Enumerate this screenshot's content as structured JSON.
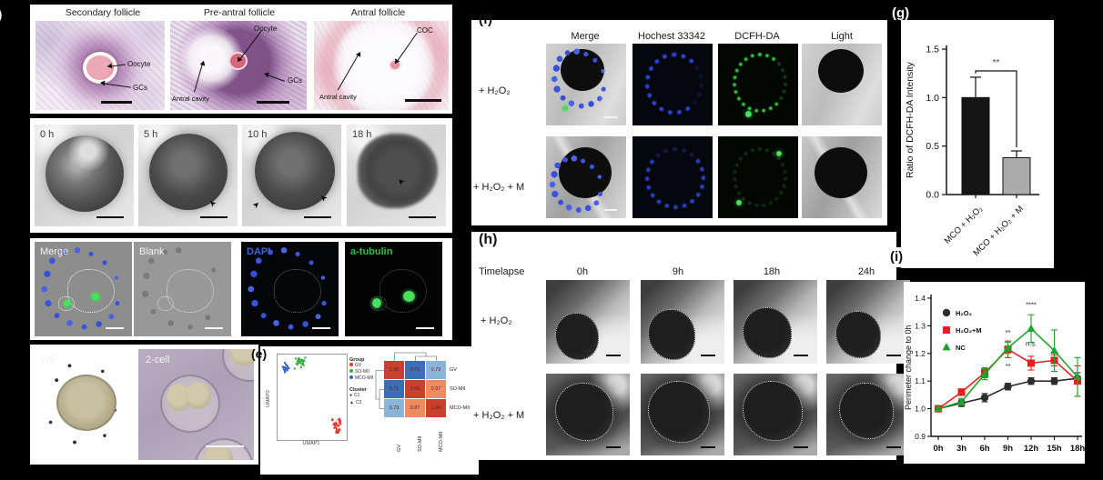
{
  "panel_a": {
    "label": "a)",
    "figures": [
      {
        "title": "Secondary follicle",
        "ann1": "Oocyte",
        "ann2": "GCs"
      },
      {
        "title": "Pre-antral follicle",
        "ann1": "Oocyte",
        "ann2": "Antral cavity",
        "ann3": "GCs"
      },
      {
        "title": "Antral follicle",
        "ann1": "COC",
        "ann2": "Antral cavity"
      }
    ]
  },
  "panel_b": {
    "timepoints": [
      "0 h",
      "5 h",
      "10 h",
      "18 h"
    ]
  },
  "panel_c": {
    "channels": [
      "Merge",
      "Blank",
      "DAPI",
      "a-tubulin"
    ],
    "channel_colors": [
      "#f2f2f2",
      "#f2f2f2",
      "#3e62e0",
      "#2fbf49"
    ]
  },
  "panel_d": {
    "labels": [
      "IVF",
      "2-cell"
    ]
  },
  "panel_e": {
    "label": "(e)",
    "plus_mark": "+"
  },
  "panel_f": {
    "label": "(f)",
    "columns": [
      "Merge",
      "Hochest 33342",
      "DCFH-DA",
      "Light"
    ],
    "rows": [
      "+ H₂O₂",
      "+ H₂O₂ + M"
    ]
  },
  "panel_g": {
    "label": "(g)"
  },
  "panel_h": {
    "label": "(h)",
    "timelapse_label": "Timelapse",
    "columns": [
      "0h",
      "9h",
      "18h",
      "24h"
    ],
    "rows": [
      "+ H₂O₂",
      "+ H₂O₂ + M"
    ]
  },
  "panel_i": {
    "label": "(i)"
  },
  "chart_data": [
    {
      "id": "umap_scatter",
      "type": "scatter",
      "xlabel": "UMAP1",
      "ylabel": "UMAP2",
      "legend": {
        "group_title": "Group",
        "groups": [
          {
            "name": "GV",
            "color": "#e0342b"
          },
          {
            "name": "SO-MII",
            "color": "#3fae3f"
          },
          {
            "name": "MCO-MII",
            "color": "#3a63c2"
          }
        ],
        "cluster_title": "Cluster",
        "clusters": [
          {
            "name": "C1",
            "marker": "circle"
          },
          {
            "name": "C2",
            "marker": "triangle"
          }
        ]
      },
      "clusters": [
        {
          "group": "GV",
          "color": "#e0342b",
          "marker": "triangle",
          "cx": 0.86,
          "cy": 0.16,
          "rx": 0.07,
          "ry": 0.11,
          "n": 30
        },
        {
          "group": "SO-MII",
          "color": "#3fae3f",
          "marker": "circle",
          "cx": 0.33,
          "cy": 0.9,
          "rx": 0.1,
          "ry": 0.08,
          "n": 28
        },
        {
          "group": "MCO-MII",
          "color": "#3a63c2",
          "marker": "circle",
          "cx": 0.11,
          "cy": 0.85,
          "rx": 0.06,
          "ry": 0.07,
          "n": 20
        }
      ]
    },
    {
      "id": "correlation_heatmap",
      "type": "heatmap",
      "row_labels": [
        "GV",
        "SO-MII",
        "MCO-MII"
      ],
      "col_labels": [
        "GV",
        "SO-MII",
        "MCO-MII"
      ],
      "matrix": [
        [
          1.0,
          0.71,
          0.73
        ],
        [
          0.71,
          1.0,
          0.97
        ],
        [
          0.73,
          0.97,
          1.0
        ]
      ],
      "color_scale": [
        {
          "min": 0.99,
          "color": "#c8402f"
        },
        {
          "min": 0.9,
          "color": "#ef8a63"
        },
        {
          "min": 0.72,
          "color": "#8ab5d8"
        },
        {
          "min": 0,
          "color": "#3c6db5"
        }
      ],
      "value_text_color": "#5f1a0e"
    },
    {
      "id": "dcfh_bar",
      "type": "bar",
      "ylabel": "Ratio of DCFH-DA Intensity",
      "categories": [
        "MCO + H₂O₂",
        "MCO + H₂O₂ + M"
      ],
      "values": [
        1.0,
        0.38
      ],
      "errors": [
        0.21,
        0.07
      ],
      "bar_colors": [
        "#151515",
        "#ababab"
      ],
      "significance": "**",
      "ylim": [
        0,
        1.5
      ],
      "yticks": [
        "0.0",
        "0.5",
        "1.0",
        "1.5"
      ]
    },
    {
      "id": "perimeter_line",
      "type": "line",
      "ylabel": "Perimeter change to 0h",
      "x_labels": [
        "0h",
        "3h",
        "6h",
        "9h",
        "12h",
        "15h",
        "18h"
      ],
      "ylim": [
        0.9,
        1.4
      ],
      "yticks": [
        "0.9",
        "1.0",
        "1.1",
        "1.2",
        "1.3",
        "1.4"
      ],
      "series": [
        {
          "name": "H₂O₂",
          "color": "#2d2d2d",
          "marker": "circle",
          "values": [
            1.0,
            1.02,
            1.04,
            1.08,
            1.1,
            1.1,
            1.11
          ],
          "errors": [
            0.005,
            0.012,
            0.015,
            0.012,
            0.012,
            0.012,
            0.02
          ]
        },
        {
          "name": "H₂O₂+M",
          "color": "#e81e1e",
          "marker": "square",
          "values": [
            1.0,
            1.06,
            1.13,
            1.215,
            1.165,
            1.175,
            1.1
          ],
          "errors": [
            0.005,
            0.012,
            0.018,
            0.03,
            0.025,
            0.02,
            0.055
          ]
        },
        {
          "name": "NC",
          "color": "#1ea32b",
          "marker": "triangle",
          "values": [
            1.0,
            1.025,
            1.125,
            1.22,
            1.29,
            1.21,
            1.115
          ],
          "errors": [
            0.005,
            0.012,
            0.02,
            0.02,
            0.05,
            0.075,
            0.07
          ]
        }
      ],
      "annotations": [
        {
          "xi": 3,
          "y": 1.268,
          "text": "**"
        },
        {
          "xi": 3,
          "y": 1.147,
          "text": "**"
        },
        {
          "xi": 4,
          "y": 1.368,
          "text": "****"
        },
        {
          "xi": 4,
          "y": 1.228,
          "text": "n.s."
        }
      ]
    }
  ]
}
